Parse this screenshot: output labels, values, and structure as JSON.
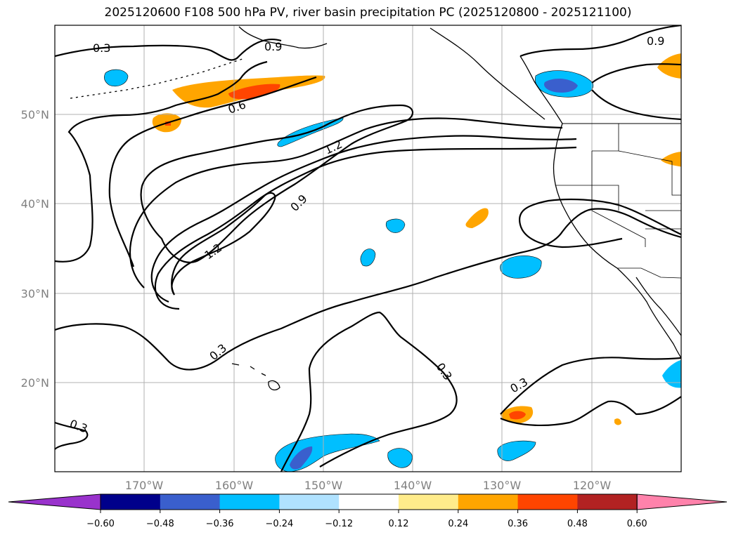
{
  "title": "2025120600 F108 500 hPa PV, river basin precipitation PC (2025120800 - 2025121100)",
  "map": {
    "lat_ticks": [
      "50°N",
      "40°N",
      "30°N",
      "20°N"
    ],
    "lon_ticks": [
      "170°W",
      "160°W",
      "150°W",
      "140°W",
      "130°W",
      "120°W"
    ],
    "extent": {
      "lon_min": -180,
      "lon_max": -110,
      "lat_min": 10,
      "lat_max": 60
    },
    "gridlines": true,
    "contour_labels": [
      "0.3",
      "0.9",
      "0.9",
      "0.6",
      "1.2",
      "0.9",
      "1.2",
      "0.3",
      "0.3",
      "0.3",
      "0.3"
    ]
  },
  "colorbar": {
    "ticks": [
      "−0.60",
      "−0.48",
      "−0.36",
      "−0.24",
      "−0.12",
      "0.12",
      "0.24",
      "0.36",
      "0.48",
      "0.60"
    ],
    "colors": [
      "#9932cc",
      "#00008b",
      "#3a5fcd",
      "#00bfff",
      "#b0e2ff",
      "#ffffff",
      "#ffec8b",
      "#ffa500",
      "#ff4500",
      "#b22222",
      "#ff82ab"
    ]
  },
  "colors": {
    "neg_light": "#b0e2ff",
    "neg_mid": "#00bfff",
    "neg_strong": "#3a5fcd",
    "pos_light": "#ffec8b",
    "pos_mid": "#ffa500",
    "pos_strong": "#ff4500",
    "grid": "#b0b0b0"
  }
}
